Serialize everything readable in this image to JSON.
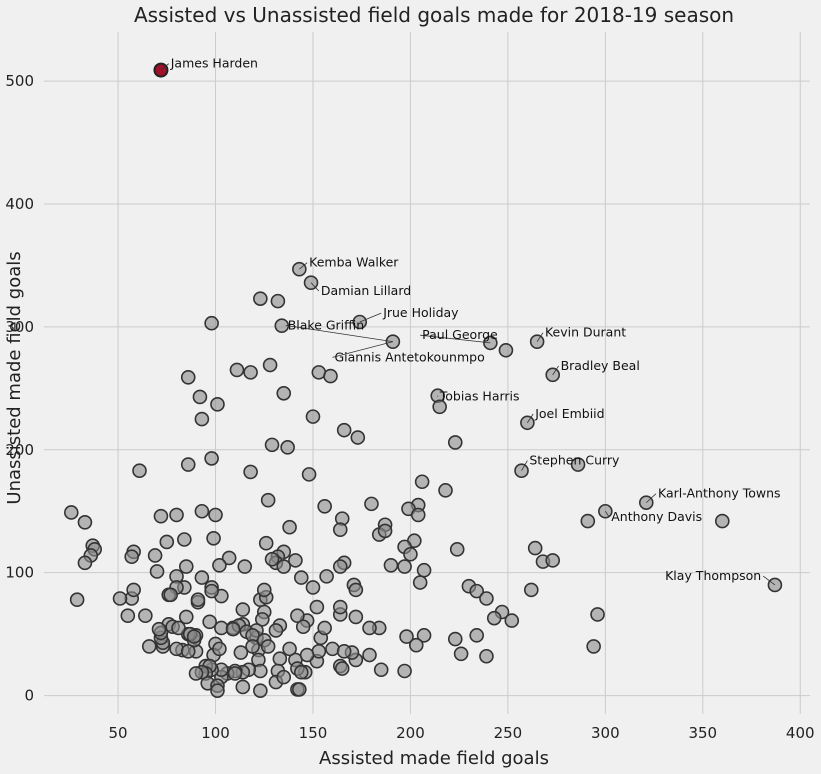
{
  "chart_data": {
    "type": "scatter",
    "title": "Assisted vs Unassisted field goals made for 2018-19 season",
    "xlabel": "Assisted made field goals",
    "ylabel": "Unassisted made field goals",
    "xlim": [
      12,
      405
    ],
    "ylim": [
      -15,
      540
    ],
    "xticks": [
      50,
      100,
      150,
      200,
      250,
      300,
      350,
      400
    ],
    "yticks": [
      0,
      100,
      200,
      300,
      400,
      500
    ],
    "grid": true,
    "colors": {
      "point": "#8c8c8c",
      "point_edge": "#333333",
      "highlight": "#a0102a",
      "background": "#f0f0f0",
      "grid": "#cbcbcb"
    },
    "highlight": {
      "name": "James Harden",
      "x": 72,
      "y": 509
    },
    "annotations": [
      {
        "name": "James Harden",
        "x": 72,
        "y": 509,
        "tx": 76,
        "ty": 511,
        "anchor": "start"
      },
      {
        "name": "Kemba Walker",
        "x": 143,
        "y": 347,
        "tx": 147,
        "ty": 349,
        "anchor": "start"
      },
      {
        "name": "Damian Lillard",
        "x": 149,
        "y": 336,
        "tx": 153,
        "ty": 326,
        "anchor": "start"
      },
      {
        "name": "Jrue Holiday",
        "x": 174,
        "y": 304,
        "tx": 185,
        "ty": 308,
        "anchor": "start"
      },
      {
        "name": "Blake Griffin",
        "x": 191,
        "y": 288,
        "tx": 136,
        "ty": 298,
        "anchor": "start"
      },
      {
        "name": "Giannis Antetokounmpo",
        "x": 191,
        "y": 288,
        "tx": 160,
        "ty": 272,
        "anchor": "start"
      },
      {
        "name": "Paul George",
        "x": 241,
        "y": 287,
        "tx": 205,
        "ty": 290,
        "anchor": "start"
      },
      {
        "name": "Kevin Durant",
        "x": 265,
        "y": 288,
        "tx": 268,
        "ty": 292,
        "anchor": "start"
      },
      {
        "name": "Bradley Beal",
        "x": 273,
        "y": 261,
        "tx": 276,
        "ty": 265,
        "anchor": "start"
      },
      {
        "name": "Tobias Harris",
        "x": 214,
        "y": 244,
        "tx": 214,
        "ty": 240,
        "anchor": "start"
      },
      {
        "name": "Joel Embiid",
        "x": 260,
        "y": 222,
        "tx": 263,
        "ty": 226,
        "anchor": "start"
      },
      {
        "name": "Stephen Curry",
        "x": 257,
        "y": 183,
        "tx": 260,
        "ty": 188,
        "anchor": "start"
      },
      {
        "name": "Karl-Anthony Towns",
        "x": 321,
        "y": 157,
        "tx": 326,
        "ty": 161,
        "anchor": "start"
      },
      {
        "name": "Anthony Davis",
        "x": 300,
        "y": 150,
        "tx": 302,
        "ty": 142,
        "anchor": "start"
      },
      {
        "name": "Klay Thompson",
        "x": 387,
        "y": 90,
        "tx": 381,
        "ty": 94,
        "anchor": "end"
      }
    ],
    "points": [
      [
        72,
        509
      ],
      [
        143,
        347
      ],
      [
        149,
        336
      ],
      [
        174,
        304
      ],
      [
        191,
        288
      ],
      [
        241,
        287
      ],
      [
        249,
        281
      ],
      [
        265,
        288
      ],
      [
        273,
        261
      ],
      [
        214,
        244
      ],
      [
        215,
        235
      ],
      [
        260,
        222
      ],
      [
        257,
        183
      ],
      [
        286,
        188
      ],
      [
        321,
        157
      ],
      [
        300,
        150
      ],
      [
        291,
        142
      ],
      [
        360,
        142
      ],
      [
        387,
        90
      ],
      [
        123,
        323
      ],
      [
        132,
        321
      ],
      [
        98,
        303
      ],
      [
        134,
        301
      ],
      [
        153,
        263
      ],
      [
        159,
        260
      ],
      [
        111,
        265
      ],
      [
        118,
        263
      ],
      [
        128,
        269
      ],
      [
        86,
        259
      ],
      [
        135,
        246
      ],
      [
        92,
        243
      ],
      [
        101,
        237
      ],
      [
        93,
        225
      ],
      [
        150,
        227
      ],
      [
        166,
        216
      ],
      [
        173,
        210
      ],
      [
        223,
        206
      ],
      [
        129,
        204
      ],
      [
        137,
        202
      ],
      [
        98,
        193
      ],
      [
        86,
        188
      ],
      [
        61,
        183
      ],
      [
        118,
        182
      ],
      [
        148,
        180
      ],
      [
        206,
        174
      ],
      [
        218,
        167
      ],
      [
        127,
        159
      ],
      [
        180,
        156
      ],
      [
        156,
        154
      ],
      [
        204,
        155
      ],
      [
        199,
        152
      ],
      [
        72,
        146
      ],
      [
        80,
        147
      ],
      [
        93,
        150
      ],
      [
        100,
        147
      ],
      [
        26,
        149
      ],
      [
        33,
        141
      ],
      [
        165,
        144
      ],
      [
        164,
        135
      ],
      [
        187,
        139
      ],
      [
        184,
        131
      ],
      [
        187,
        134
      ],
      [
        202,
        126
      ],
      [
        204,
        147
      ],
      [
        138,
        137
      ],
      [
        37,
        122
      ],
      [
        38,
        119
      ],
      [
        36,
        114
      ],
      [
        33,
        108
      ],
      [
        58,
        117
      ],
      [
        57,
        113
      ],
      [
        69,
        114
      ],
      [
        75,
        125
      ],
      [
        84,
        127
      ],
      [
        99,
        128
      ],
      [
        107,
        112
      ],
      [
        126,
        124
      ],
      [
        135,
        117
      ],
      [
        132,
        113
      ],
      [
        131,
        108
      ],
      [
        135,
        105
      ],
      [
        129,
        111
      ],
      [
        141,
        110
      ],
      [
        115,
        105
      ],
      [
        102,
        106
      ],
      [
        85,
        105
      ],
      [
        93,
        96
      ],
      [
        80,
        97
      ],
      [
        70,
        101
      ],
      [
        144,
        96
      ],
      [
        157,
        97
      ],
      [
        166,
        108
      ],
      [
        164,
        105
      ],
      [
        171,
        90
      ],
      [
        172,
        86
      ],
      [
        190,
        106
      ],
      [
        197,
        105
      ],
      [
        197,
        121
      ],
      [
        200,
        115
      ],
      [
        207,
        102
      ],
      [
        205,
        92
      ],
      [
        224,
        119
      ],
      [
        230,
        89
      ],
      [
        234,
        85
      ],
      [
        239,
        79
      ],
      [
        264,
        120
      ],
      [
        268,
        109
      ],
      [
        273,
        110
      ],
      [
        262,
        86
      ],
      [
        294,
        40
      ],
      [
        296,
        66
      ],
      [
        247,
        68
      ],
      [
        243,
        63
      ],
      [
        252,
        61
      ],
      [
        239,
        32
      ],
      [
        234,
        49
      ],
      [
        226,
        34
      ],
      [
        223,
        46
      ],
      [
        207,
        49
      ],
      [
        203,
        41
      ],
      [
        198,
        48
      ],
      [
        197,
        20
      ],
      [
        185,
        21
      ],
      [
        184,
        55
      ],
      [
        179,
        55
      ],
      [
        179,
        33
      ],
      [
        172,
        29
      ],
      [
        172,
        64
      ],
      [
        170,
        35
      ],
      [
        164,
        24
      ],
      [
        160,
        38
      ],
      [
        165,
        22
      ],
      [
        166,
        36
      ],
      [
        152,
        28
      ],
      [
        153,
        36
      ],
      [
        154,
        47
      ],
      [
        152,
        72
      ],
      [
        156,
        55
      ],
      [
        164,
        66
      ],
      [
        164,
        72
      ],
      [
        147,
        61
      ],
      [
        150,
        88
      ],
      [
        142,
        65
      ],
      [
        145,
        56
      ],
      [
        141,
        29
      ],
      [
        146,
        19
      ],
      [
        142,
        22
      ],
      [
        147,
        33
      ],
      [
        144,
        19
      ],
      [
        142,
        5
      ],
      [
        138,
        38
      ],
      [
        133,
        30
      ],
      [
        132,
        20
      ],
      [
        131,
        11
      ],
      [
        135,
        15
      ],
      [
        133,
        57
      ],
      [
        131,
        53
      ],
      [
        125,
        68
      ],
      [
        124,
        62
      ],
      [
        123,
        78
      ],
      [
        126,
        80
      ],
      [
        125,
        86
      ],
      [
        114,
        70
      ],
      [
        114,
        58
      ],
      [
        109,
        55
      ],
      [
        112,
        57
      ],
      [
        116,
        52
      ],
      [
        121,
        47
      ],
      [
        121,
        53
      ],
      [
        119,
        49
      ],
      [
        122,
        37
      ],
      [
        122,
        29
      ],
      [
        123,
        20
      ],
      [
        117,
        21
      ],
      [
        114,
        19
      ],
      [
        110,
        20
      ],
      [
        113,
        35
      ],
      [
        119,
        40
      ],
      [
        125,
        45
      ],
      [
        127,
        40
      ],
      [
        103,
        55
      ],
      [
        97,
        60
      ],
      [
        109,
        54
      ],
      [
        103,
        81
      ],
      [
        98,
        88
      ],
      [
        98,
        85
      ],
      [
        100,
        42
      ],
      [
        99,
        33
      ],
      [
        102,
        38
      ],
      [
        106,
        18
      ],
      [
        110,
        18
      ],
      [
        103,
        15
      ],
      [
        103,
        21
      ],
      [
        98,
        21
      ],
      [
        95,
        24
      ],
      [
        97,
        24
      ],
      [
        95,
        18
      ],
      [
        96,
        10
      ],
      [
        101,
        8
      ],
      [
        101,
        4
      ],
      [
        93,
        19
      ],
      [
        90,
        18
      ],
      [
        90,
        36
      ],
      [
        89,
        45
      ],
      [
        90,
        49
      ],
      [
        86,
        50
      ],
      [
        87,
        50
      ],
      [
        89,
        48
      ],
      [
        91,
        76
      ],
      [
        91,
        78
      ],
      [
        85,
        64
      ],
      [
        84,
        88
      ],
      [
        80,
        88
      ],
      [
        76,
        82
      ],
      [
        77,
        82
      ],
      [
        76,
        58
      ],
      [
        78,
        56
      ],
      [
        81,
        55
      ],
      [
        83,
        37
      ],
      [
        80,
        38
      ],
      [
        86,
        36
      ],
      [
        73,
        40
      ],
      [
        73,
        43
      ],
      [
        72,
        47
      ],
      [
        72,
        51
      ],
      [
        71,
        54
      ],
      [
        66,
        40
      ],
      [
        64,
        65
      ],
      [
        57,
        79
      ],
      [
        55,
        65
      ],
      [
        51,
        79
      ],
      [
        58,
        86
      ],
      [
        29,
        78
      ],
      [
        114,
        7
      ],
      [
        123,
        4
      ],
      [
        143,
        5
      ]
    ]
  }
}
